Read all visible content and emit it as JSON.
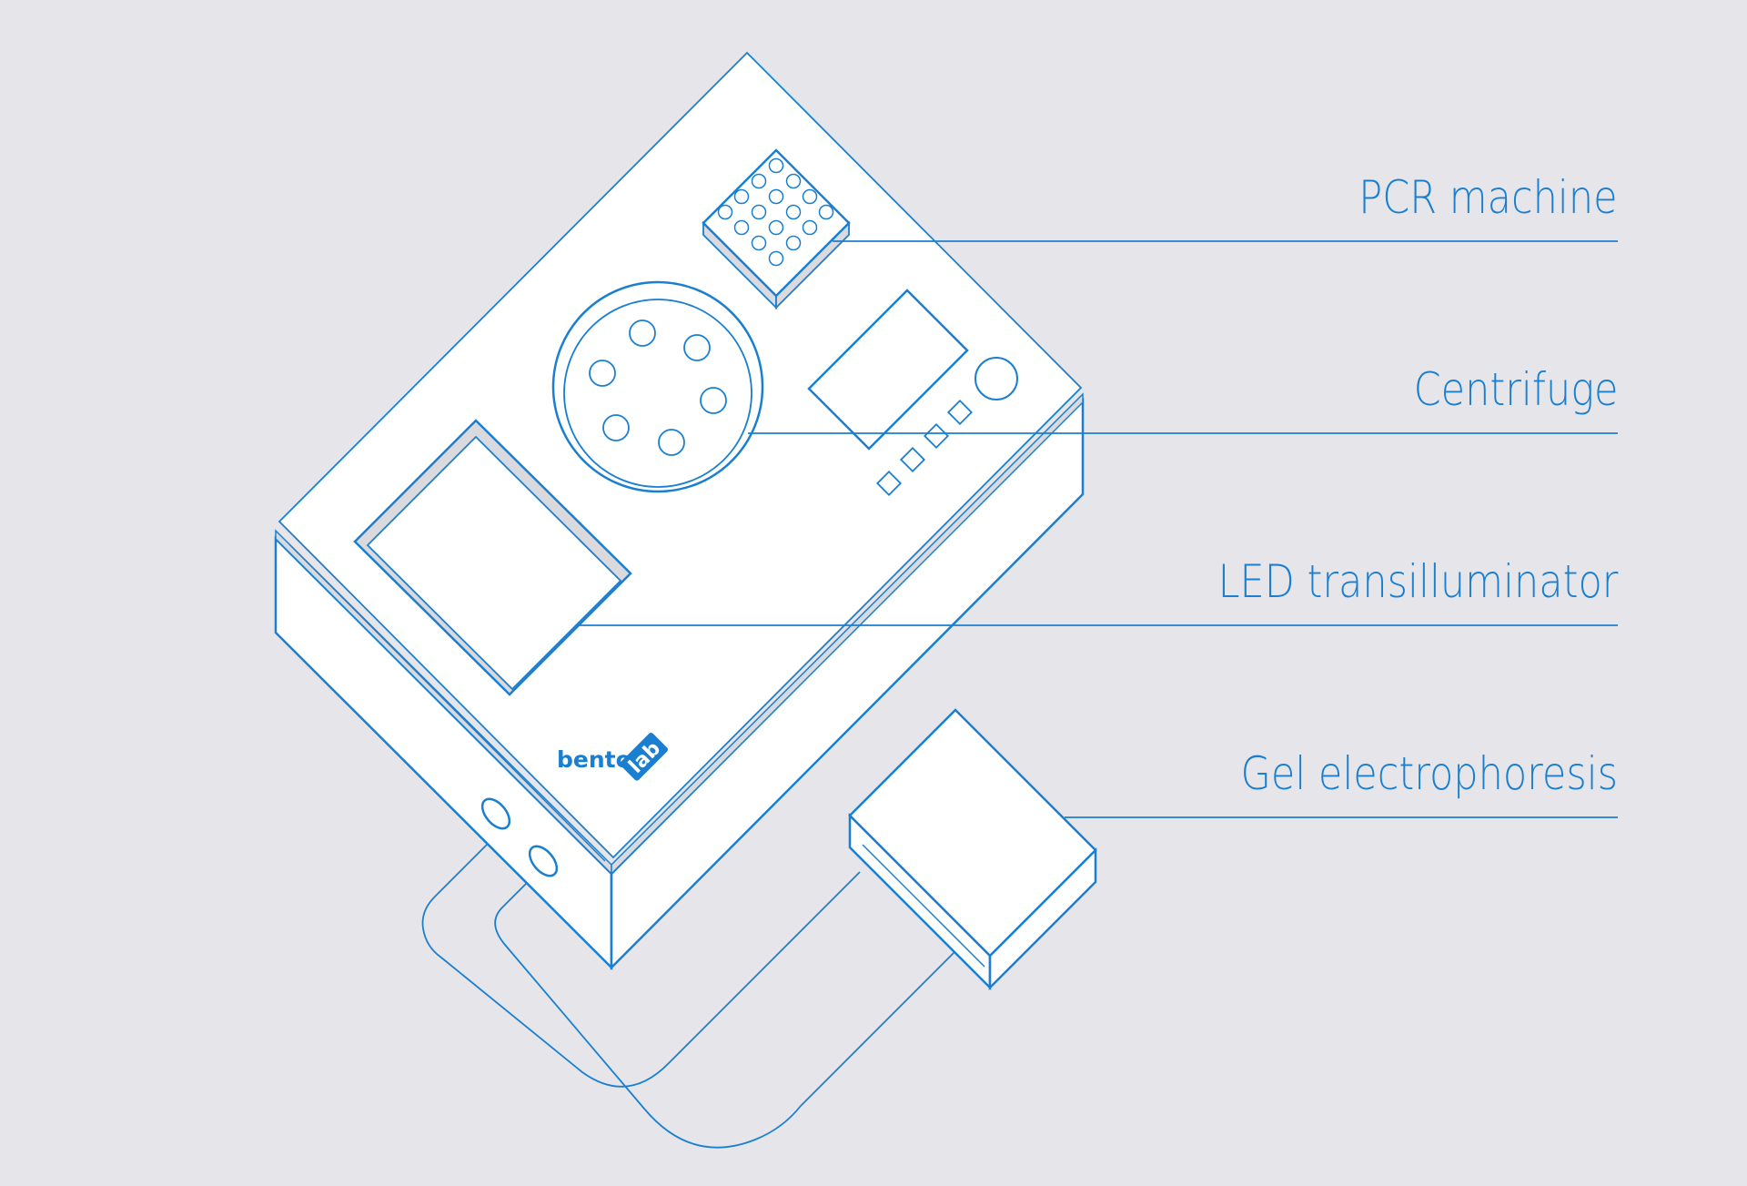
{
  "colors": {
    "background": "#e6e6ea",
    "line": "#1a7fd0",
    "text": "#1a7fd0",
    "fill": "#ffffff",
    "shade": "#d9d9de"
  },
  "brand": {
    "word1": "bento",
    "word2": "lab"
  },
  "callouts": [
    {
      "label": "PCR machine"
    },
    {
      "label": "Centrifuge"
    },
    {
      "label": "LED transilluminator"
    },
    {
      "label": "Gel electrophoresis"
    }
  ]
}
